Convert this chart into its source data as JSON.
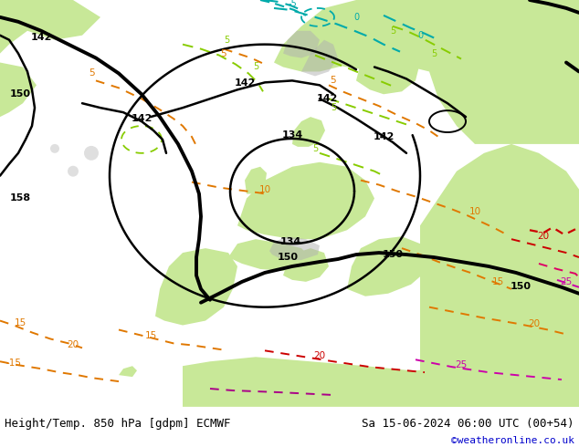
{
  "title_left": "Height/Temp. 850 hPa [gdpm] ECMWF",
  "title_right": "Sa 15-06-2024 06:00 UTC (00+54)",
  "credit": "©weatheronline.co.uk",
  "fig_width": 6.34,
  "fig_height": 4.9,
  "dpi": 100,
  "sea_color": "#e8e8e8",
  "land_color": "#c8e898",
  "mountain_color": "#b0b0b0",
  "title_fontsize": 9.0,
  "credit_fontsize": 8,
  "credit_color": "#0000cc",
  "black_contour_lw": 1.8,
  "front_lw": 2.8
}
